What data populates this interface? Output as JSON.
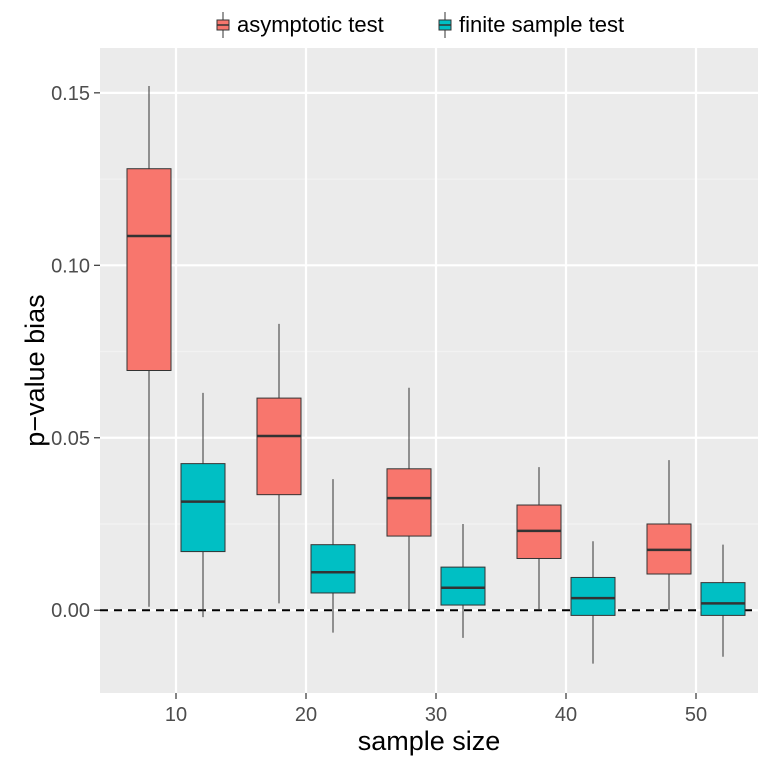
{
  "chart_data": {
    "type": "boxplot",
    "xlabel": "sample size",
    "ylabel": "p−value bias",
    "categories": [
      "10",
      "20",
      "30",
      "40",
      "50"
    ],
    "x_ticks": [
      "10",
      "20",
      "30",
      "40",
      "50"
    ],
    "y_ticks": [
      0.0,
      0.05,
      0.1,
      0.15
    ],
    "y_tick_labels": [
      "0.00",
      "0.05",
      "0.10",
      "0.15"
    ],
    "ylim": [
      -0.024,
      0.163
    ],
    "grid": true,
    "legend_position": "top",
    "reference_line": {
      "y": 0,
      "style": "dashed"
    },
    "series": [
      {
        "name": "asymptotic test",
        "color": "#F8766D",
        "boxes": [
          {
            "whisker_low": 0.001,
            "q1": 0.0695,
            "median": 0.1085,
            "q3": 0.128,
            "whisker_high": 0.152
          },
          {
            "whisker_low": 0.002,
            "q1": 0.0335,
            "median": 0.0505,
            "q3": 0.0615,
            "whisker_high": 0.083
          },
          {
            "whisker_low": 0.0,
            "q1": 0.0215,
            "median": 0.0325,
            "q3": 0.041,
            "whisker_high": 0.0645
          },
          {
            "whisker_low": 0.0,
            "q1": 0.015,
            "median": 0.023,
            "q3": 0.0305,
            "whisker_high": 0.0415
          },
          {
            "whisker_low": 0.0,
            "q1": 0.0105,
            "median": 0.0175,
            "q3": 0.025,
            "whisker_high": 0.0435
          }
        ]
      },
      {
        "name": "finite sample test",
        "color": "#00BFC4",
        "boxes": [
          {
            "whisker_low": -0.002,
            "q1": 0.017,
            "median": 0.0315,
            "q3": 0.0425,
            "whisker_high": 0.063
          },
          {
            "whisker_low": -0.0065,
            "q1": 0.005,
            "median": 0.011,
            "q3": 0.019,
            "whisker_high": 0.038
          },
          {
            "whisker_low": -0.008,
            "q1": 0.0015,
            "median": 0.0065,
            "q3": 0.0125,
            "whisker_high": 0.025
          },
          {
            "whisker_low": -0.0155,
            "q1": -0.0015,
            "median": 0.0035,
            "q3": 0.0095,
            "whisker_high": 0.02
          },
          {
            "whisker_low": -0.0135,
            "q1": -0.0015,
            "median": 0.002,
            "q3": 0.008,
            "whisker_high": 0.019
          }
        ]
      }
    ]
  },
  "colors": {
    "panel_background": "#EBEBEB",
    "grid_major": "#FFFFFF",
    "grid_minor": "#F2F2F2",
    "box_outline": "#333333"
  }
}
